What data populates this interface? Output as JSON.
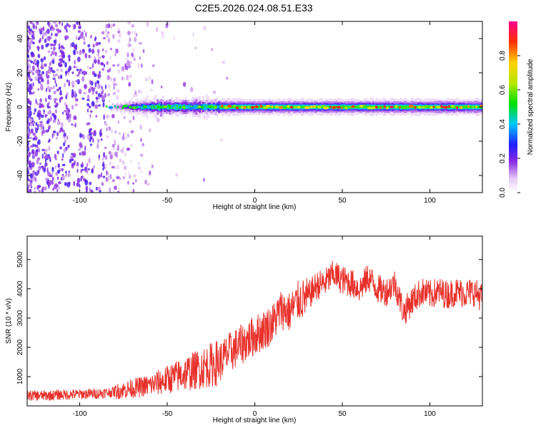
{
  "title": "C2E5.2026.024.08.51.E33",
  "colors": {
    "line": "#e8302a",
    "frame": "#000000"
  },
  "chart_data": [
    {
      "type": "heatmap",
      "xlabel": "Height of straight line (km)",
      "ylabel": "Frequency (Hz)",
      "xlim": [
        -130,
        130
      ],
      "ylim": [
        -50,
        50
      ],
      "xticks": [
        -100,
        -50,
        0,
        50,
        100
      ],
      "yticks": [
        -40,
        -20,
        0,
        20,
        40
      ],
      "colorbar": {
        "label": "Normalized spectral amplitude",
        "range": [
          0,
          1
        ],
        "ticks": [
          0.0,
          0.2,
          0.4,
          0.6,
          0.8
        ],
        "colormap": "rainbow"
      },
      "description_of_data": [
        {
          "x_range": [
            -130,
            -85
          ],
          "feature": "scattered broadband noise",
          "amplitude": 0.15
        },
        {
          "x_range": [
            -85,
            -20
          ],
          "feature": "signal onset near 0 Hz",
          "amplitude": 0.45
        },
        {
          "x_range": [
            -20,
            130
          ],
          "feature": "strong narrow signal at 0 Hz",
          "amplitude": 0.95
        }
      ]
    },
    {
      "type": "line",
      "xlabel": "Height of straight line (km)",
      "ylabel": "SNR (10 * v/v)",
      "xlim": [
        -130,
        130
      ],
      "ylim": [
        0,
        5800
      ],
      "xticks": [
        -100,
        -50,
        0,
        50,
        100
      ],
      "yticks": [
        1000,
        2000,
        3000,
        4000,
        5000
      ],
      "series": [
        {
          "x": [
            -130,
            -120,
            -110,
            -100,
            -90,
            -80,
            -70,
            -60,
            -50,
            -40,
            -30,
            -20,
            -15,
            -10,
            -5,
            0,
            5,
            10,
            15,
            20,
            25,
            30,
            35,
            40,
            45,
            50,
            55,
            60,
            65,
            70,
            75,
            80,
            85,
            90,
            95,
            100,
            105,
            110,
            115,
            120,
            125,
            130
          ],
          "y": [
            350,
            350,
            380,
            400,
            420,
            480,
            600,
            700,
            900,
            1100,
            1300,
            1500,
            1800,
            2000,
            2200,
            2400,
            2600,
            2800,
            3300,
            3200,
            3600,
            3700,
            4100,
            4200,
            4500,
            4300,
            4200,
            4000,
            4400,
            4000,
            3900,
            4200,
            3200,
            3600,
            3900,
            3800,
            3900,
            3800,
            3900,
            3850,
            3900,
            3700
          ]
        }
      ]
    }
  ]
}
